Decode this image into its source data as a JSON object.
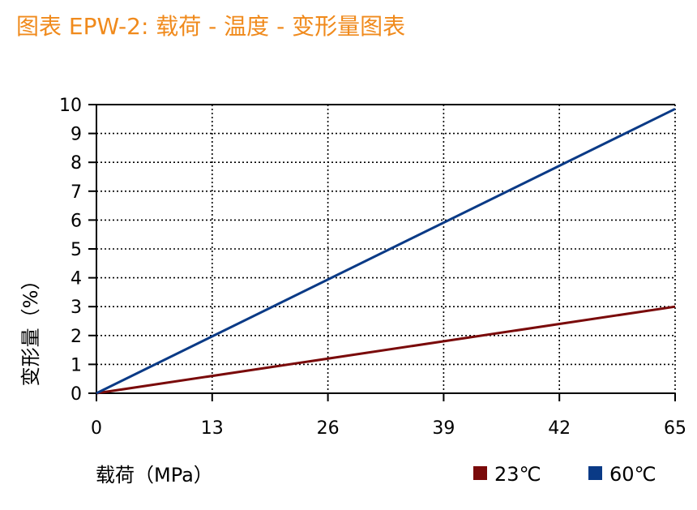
{
  "title": "图表 EPW-2: 载荷 - 温度 - 变形量图表",
  "colors": {
    "title": "#f08a1c",
    "series_23": "#7a0a0a",
    "series_60": "#0a3a86",
    "grid": "#000000",
    "axis": "#000000"
  },
  "chart_data": {
    "type": "line",
    "title": "图表 EPW-2: 载荷 - 温度 - 变形量图表",
    "xlabel": "载荷（MPa）",
    "ylabel": "变形量（%）",
    "x_tick_labels": [
      "0",
      "13",
      "26",
      "39",
      "42",
      "65"
    ],
    "y_ticks": [
      0,
      1,
      2,
      3,
      4,
      5,
      6,
      7,
      8,
      9,
      10
    ],
    "ylim": [
      0,
      10
    ],
    "grid": true,
    "grid_style": "dotted",
    "legend_position": "bottom-right",
    "series": [
      {
        "name": "23℃",
        "color": "#7a0a0a",
        "points": [
          [
            0,
            0
          ],
          [
            65,
            3.0
          ]
        ]
      },
      {
        "name": "60℃",
        "color": "#0a3a86",
        "points": [
          [
            0,
            0
          ],
          [
            65,
            9.85
          ]
        ]
      }
    ]
  }
}
